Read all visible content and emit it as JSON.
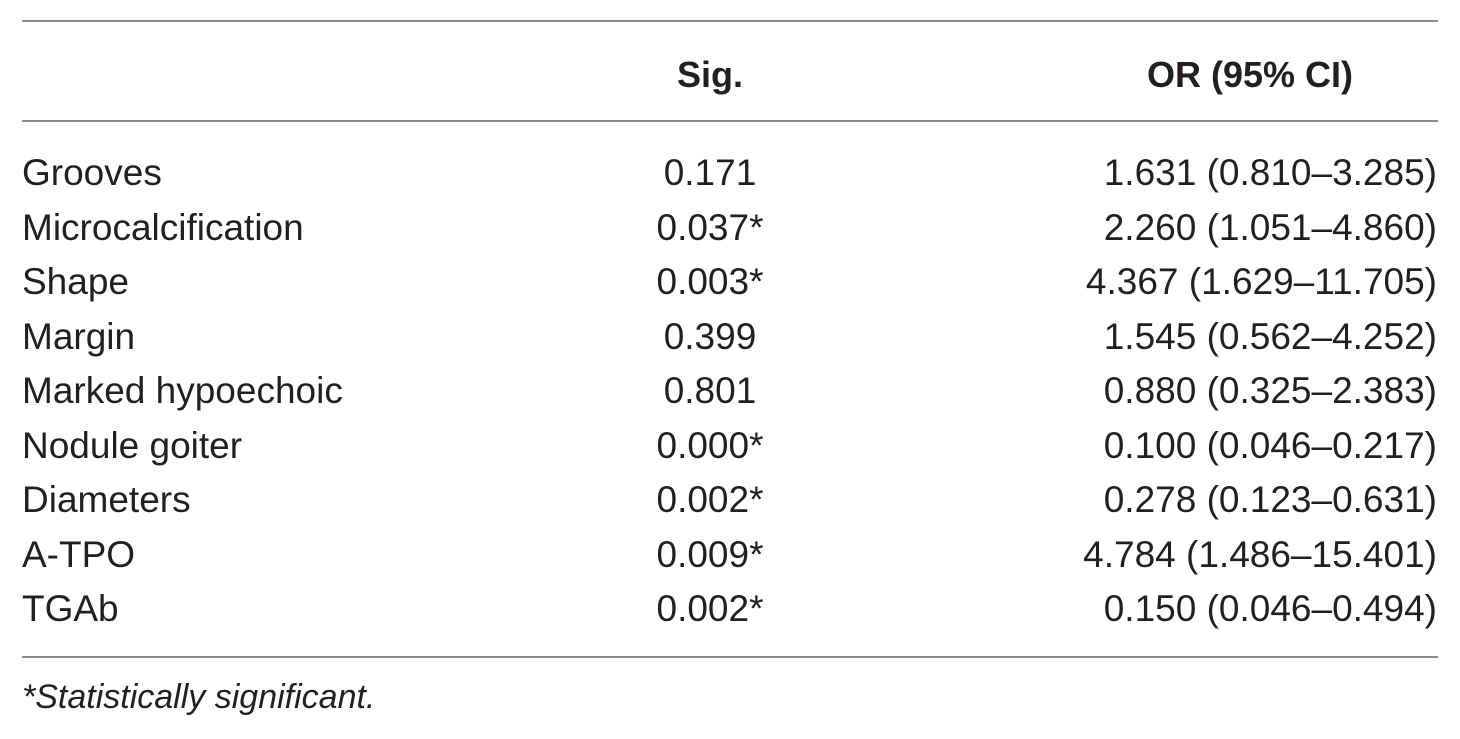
{
  "table": {
    "columns": {
      "variable": "",
      "sig": "Sig.",
      "or": "OR (95% CI)"
    },
    "rows": [
      {
        "variable": "Grooves",
        "sig": "0.171",
        "or": "1.631 (0.810–3.285)"
      },
      {
        "variable": "Microcalcification",
        "sig": "0.037*",
        "or": "2.260 (1.051–4.860)"
      },
      {
        "variable": "Shape",
        "sig": "0.003*",
        "or": "4.367 (1.629–11.705)"
      },
      {
        "variable": "Margin",
        "sig": "0.399",
        "or": "1.545 (0.562–4.252)"
      },
      {
        "variable": "Marked hypoechoic",
        "sig": "0.801",
        "or": "0.880 (0.325–2.383)"
      },
      {
        "variable": "Nodule goiter",
        "sig": "0.000*",
        "or": "0.100 (0.046–0.217)"
      },
      {
        "variable": "Diameters",
        "sig": "0.002*",
        "or": "0.278 (0.123–0.631)"
      },
      {
        "variable": "A-TPO",
        "sig": "0.009*",
        "or": "4.784 (1.486–15.401)"
      },
      {
        "variable": "TGAb",
        "sig": "0.002*",
        "or": "0.150 (0.046–0.494)"
      }
    ],
    "footnote": "*Statistically significant."
  },
  "colors": {
    "text": "#231f20",
    "rule": "#8c8c8c",
    "background": "#ffffff"
  }
}
